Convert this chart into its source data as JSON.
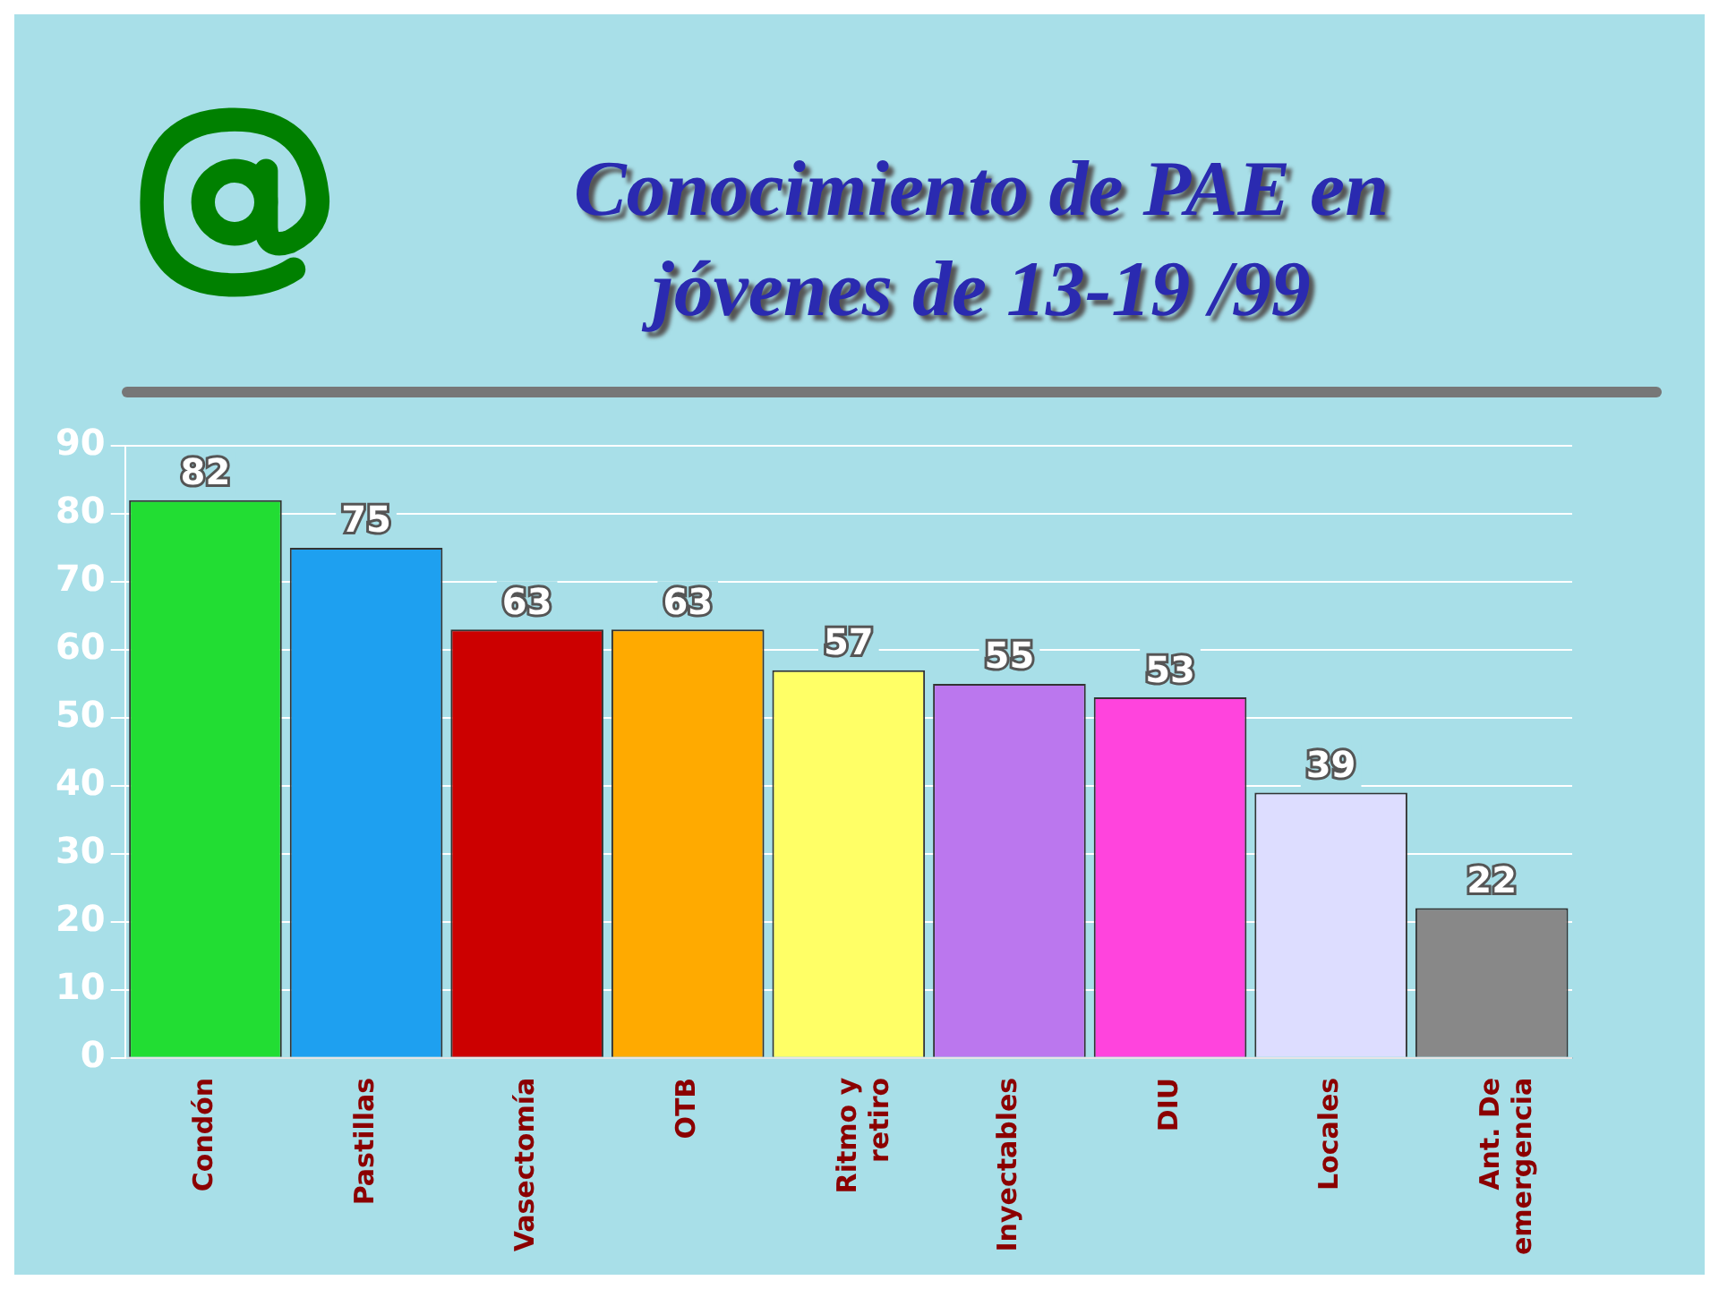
{
  "chart_data": {
    "type": "bar",
    "title": "Conocimiento de PAE en jóvenes de 13-19 /99",
    "categories": [
      "Condón",
      "Pastillas",
      "Vasectomía",
      "OTB",
      "Ritmo y retiro",
      "Inyectables",
      "DIU",
      "Locales",
      "Ant. De emergencia"
    ],
    "values": [
      82,
      75,
      63,
      63,
      57,
      55,
      53,
      39,
      22
    ],
    "colors": [
      "#22dd33",
      "#1ea0f0",
      "#cc0000",
      "#ffaa00",
      "#ffff66",
      "#bb77ee",
      "#ff44dd",
      "#ddddff",
      "#888888"
    ],
    "ylim": [
      0,
      90
    ],
    "yticks": [
      0,
      10,
      20,
      30,
      40,
      50,
      60,
      70,
      80,
      90
    ],
    "grid": "y",
    "data_labels": true
  }
}
